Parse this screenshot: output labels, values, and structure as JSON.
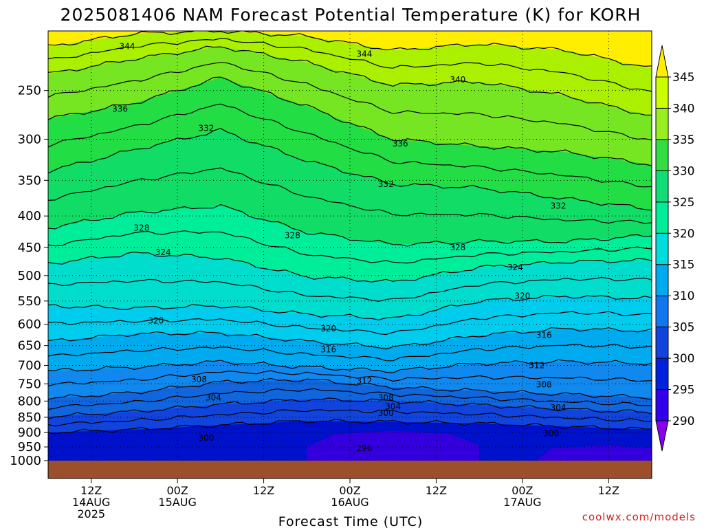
{
  "chart_data": {
    "type": "heatmap",
    "title": "2025081406 NAM Forecast Potential Temperature (K) for KORH",
    "xlabel": "Forecast Time (UTC)",
    "ylabel": "",
    "credit": "coolwx.com/models",
    "y_axis_scale": "log-pressure",
    "y_ticks": [
      "250",
      "300",
      "350",
      "400",
      "450",
      "500",
      "550",
      "600",
      "650",
      "700",
      "750",
      "800",
      "850",
      "900",
      "950",
      "1000"
    ],
    "x_ticks": [
      {
        "hour": 6,
        "line1": "12Z",
        "line2": "14AUG",
        "line3": "2025"
      },
      {
        "hour": 18,
        "line1": "00Z",
        "line2": "15AUG",
        "line3": ""
      },
      {
        "hour": 30,
        "line1": "12Z",
        "line2": "",
        "line3": ""
      },
      {
        "hour": 42,
        "line1": "00Z",
        "line2": "16AUG",
        "line3": ""
      },
      {
        "hour": 54,
        "line1": "12Z",
        "line2": "",
        "line3": ""
      },
      {
        "hour": 66,
        "line1": "00Z",
        "line2": "17AUG",
        "line3": ""
      },
      {
        "hour": 78,
        "line1": "12Z",
        "line2": "",
        "line3": ""
      }
    ],
    "xlim": [
      0,
      84
    ],
    "ylim": [
      1000,
      200
    ],
    "colorbar": {
      "ticks": [
        "290",
        "295",
        "300",
        "305",
        "310",
        "315",
        "320",
        "325",
        "330",
        "335",
        "340",
        "345"
      ],
      "colors": [
        "#8800ee",
        "#3300ee",
        "#0022dd",
        "#1144dd",
        "#1177ee",
        "#00aaee",
        "#00dddd",
        "#00ee99",
        "#11dd77",
        "#33dd44",
        "#99ee22",
        "#ccff00",
        "#ffee00"
      ]
    },
    "grid": true,
    "series": [
      {
        "values": [
          [
            0,
            900,
            300
          ],
          [
            12,
            890,
            300
          ],
          [
            24,
            875,
            300
          ],
          [
            36,
            862,
            300
          ],
          [
            48,
            865,
            300
          ],
          [
            60,
            870,
            300
          ],
          [
            72,
            880,
            300
          ],
          [
            84,
            890,
            300
          ]
        ]
      },
      {
        "values": [
          [
            0,
            848,
            304
          ],
          [
            12,
            832,
            304
          ],
          [
            24,
            810,
            304
          ],
          [
            36,
            795,
            304
          ],
          [
            48,
            800,
            304
          ],
          [
            60,
            812,
            304
          ],
          [
            72,
            825,
            304
          ],
          [
            84,
            835,
            304
          ]
        ]
      },
      {
        "values": [
          [
            0,
            792,
            308
          ],
          [
            12,
            775,
            308
          ],
          [
            24,
            745,
            308
          ],
          [
            36,
            738,
            308
          ],
          [
            48,
            760,
            308
          ],
          [
            60,
            770,
            308
          ],
          [
            72,
            780,
            308
          ],
          [
            84,
            790,
            308
          ]
        ]
      },
      {
        "values": [
          [
            0,
            715,
            312
          ],
          [
            12,
            705,
            312
          ],
          [
            24,
            690,
            312
          ],
          [
            36,
            705,
            312
          ],
          [
            48,
            715,
            312
          ],
          [
            60,
            695,
            312
          ],
          [
            72,
            690,
            312
          ],
          [
            84,
            695,
            312
          ]
        ]
      },
      {
        "values": [
          [
            0,
            640,
            316
          ],
          [
            12,
            622,
            316
          ],
          [
            24,
            620,
            316
          ],
          [
            36,
            640,
            316
          ],
          [
            48,
            655,
            316
          ],
          [
            60,
            625,
            316
          ],
          [
            72,
            610,
            316
          ],
          [
            84,
            615,
            316
          ]
        ]
      },
      {
        "values": [
          [
            0,
            560,
            320
          ],
          [
            12,
            565,
            320
          ],
          [
            24,
            560,
            320
          ],
          [
            36,
            578,
            320
          ],
          [
            48,
            588,
            320
          ],
          [
            60,
            550,
            320
          ],
          [
            72,
            540,
            320
          ],
          [
            84,
            545,
            320
          ]
        ]
      },
      {
        "values": [
          [
            0,
            478,
            324
          ],
          [
            12,
            460,
            324
          ],
          [
            24,
            468,
            324
          ],
          [
            36,
            502,
            324
          ],
          [
            48,
            512,
            324
          ],
          [
            60,
            485,
            324
          ],
          [
            72,
            475,
            324
          ],
          [
            84,
            472,
            324
          ]
        ]
      },
      {
        "values": [
          [
            0,
            418,
            328
          ],
          [
            12,
            395,
            328
          ],
          [
            24,
            385,
            328
          ],
          [
            36,
            425,
            328
          ],
          [
            48,
            445,
            328
          ],
          [
            60,
            440,
            328
          ],
          [
            72,
            440,
            328
          ],
          [
            84,
            430,
            328
          ]
        ]
      },
      {
        "values": [
          [
            0,
            338,
            332
          ],
          [
            12,
            312,
            332
          ],
          [
            24,
            290,
            332
          ],
          [
            36,
            325,
            332
          ],
          [
            48,
            355,
            332
          ],
          [
            60,
            360,
            332
          ],
          [
            72,
            375,
            332
          ],
          [
            84,
            390,
            332
          ]
        ]
      },
      {
        "values": [
          [
            0,
            278,
            336
          ],
          [
            12,
            262,
            336
          ],
          [
            24,
            238,
            336
          ],
          [
            36,
            265,
            336
          ],
          [
            48,
            300,
            336
          ],
          [
            60,
            308,
            336
          ],
          [
            72,
            315,
            336
          ],
          [
            84,
            330,
            336
          ]
        ]
      },
      {
        "values": [
          [
            0,
            235,
            340
          ],
          [
            12,
            222,
            340
          ],
          [
            24,
            212,
            340
          ],
          [
            36,
            225,
            340
          ],
          [
            48,
            245,
            340
          ],
          [
            60,
            242,
            340
          ],
          [
            72,
            255,
            340
          ],
          [
            84,
            275,
            340
          ]
        ]
      },
      {
        "values": [
          [
            0,
            212,
            344
          ],
          [
            12,
            202,
            344
          ],
          [
            24,
            200,
            344
          ],
          [
            36,
            204,
            344
          ],
          [
            48,
            215,
            344
          ],
          [
            60,
            210,
            344
          ],
          [
            72,
            215,
            344
          ],
          [
            84,
            230,
            344
          ]
        ]
      }
    ],
    "contour_labels": [
      {
        "text": "344",
        "hour": 11,
        "p": 212
      },
      {
        "text": "344",
        "hour": 44,
        "p": 218
      },
      {
        "text": "340",
        "hour": 57,
        "p": 240
      },
      {
        "text": "336",
        "hour": 10,
        "p": 268
      },
      {
        "text": "332",
        "hour": 22,
        "p": 288
      },
      {
        "text": "336",
        "hour": 49,
        "p": 305
      },
      {
        "text": "332",
        "hour": 47,
        "p": 355
      },
      {
        "text": "332",
        "hour": 71,
        "p": 385
      },
      {
        "text": "328",
        "hour": 13,
        "p": 418
      },
      {
        "text": "328",
        "hour": 34,
        "p": 430
      },
      {
        "text": "328",
        "hour": 57,
        "p": 450
      },
      {
        "text": "324",
        "hour": 16,
        "p": 458
      },
      {
        "text": "324",
        "hour": 65,
        "p": 485
      },
      {
        "text": "320",
        "hour": 66,
        "p": 540
      },
      {
        "text": "320",
        "hour": 15,
        "p": 592
      },
      {
        "text": "320",
        "hour": 39,
        "p": 610
      },
      {
        "text": "316",
        "hour": 69,
        "p": 625
      },
      {
        "text": "316",
        "hour": 39,
        "p": 660
      },
      {
        "text": "312",
        "hour": 68,
        "p": 700
      },
      {
        "text": "312",
        "hour": 44,
        "p": 742
      },
      {
        "text": "308",
        "hour": 21,
        "p": 738
      },
      {
        "text": "308",
        "hour": 69,
        "p": 752
      },
      {
        "text": "308",
        "hour": 47,
        "p": 790
      },
      {
        "text": "304",
        "hour": 23,
        "p": 790
      },
      {
        "text": "304",
        "hour": 48,
        "p": 817
      },
      {
        "text": "304",
        "hour": 71,
        "p": 820
      },
      {
        "text": "300",
        "hour": 47,
        "p": 837
      },
      {
        "text": "300",
        "hour": 22,
        "p": 918
      },
      {
        "text": "300",
        "hour": 70,
        "p": 903
      },
      {
        "text": "296",
        "hour": 44,
        "p": 955
      }
    ]
  }
}
